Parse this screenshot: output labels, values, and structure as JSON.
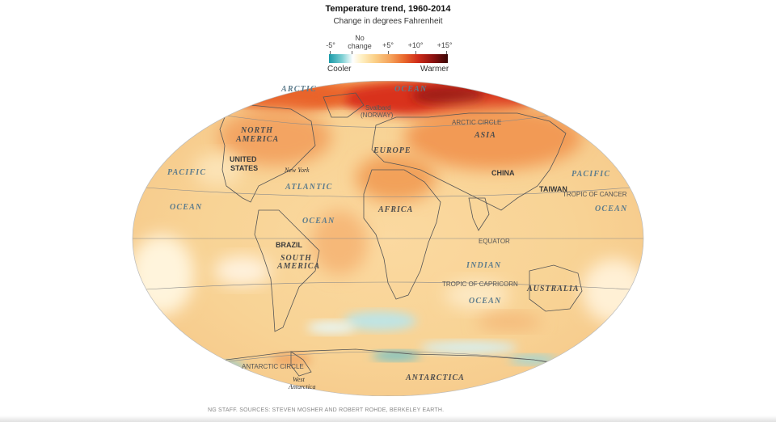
{
  "header": {
    "title": "Temperature trend, 1960-2014",
    "subtitle": "Change in degrees Fahrenheit"
  },
  "legend": {
    "minus5": "-5°",
    "no_change_line1": "No",
    "no_change_line2": "change",
    "plus5": "+5°",
    "plus10": "+10°",
    "plus15": "+15°",
    "cooler": "Cooler",
    "warmer": "Warmer",
    "colors": {
      "cool": "#1a9aa8",
      "neutral": "#ffffff",
      "warm": "#f5a15a",
      "hot": "#cf2b19",
      "hottest": "#3b0606"
    }
  },
  "map": {
    "oceans": {
      "arctic": "ARCTIC",
      "arctic_ocean": "OCEAN",
      "pacific_west": "PACIFIC",
      "ocean_pacific_west": "OCEAN",
      "atlantic": "ATLANTIC",
      "ocean_atlantic": "OCEAN",
      "pacific_east": "PACIFIC",
      "ocean_pacific_east": "OCEAN",
      "indian": "INDIAN",
      "ocean_indian": "OCEAN"
    },
    "continents": {
      "north_america_1": "NORTH",
      "north_america_2": "AMERICA",
      "south_america_1": "SOUTH",
      "south_america_2": "AMERICA",
      "europe": "EUROPE",
      "africa": "AFRICA",
      "asia": "ASIA",
      "australia": "AUSTRALIA",
      "antarctica": "ANTARCTICA",
      "west_antarctica_1": "West",
      "west_antarctica_2": "Antarctica"
    },
    "countries": {
      "united_states_1": "UNITED",
      "united_states_2": "STATES",
      "brazil": "BRAZIL",
      "china": "CHINA",
      "taiwan": "TAIWAN"
    },
    "places": {
      "svalbard_1": "Svalbard",
      "svalbard_2": "(NORWAY)",
      "new_york": "New York"
    },
    "lines": {
      "arctic_circle": "ARCTIC CIRCLE",
      "tropic_of_cancer": "TROPIC OF CANCER",
      "equator": "EQUATOR",
      "tropic_of_capricorn": "TROPIC OF CAPRICORN",
      "antarctic_circle": "ANTARCTIC CIRCLE"
    }
  },
  "source": "NG STAFF. SOURCES: STEVEN MOSHER AND ROBERT ROHDE, BERKELEY EARTH."
}
